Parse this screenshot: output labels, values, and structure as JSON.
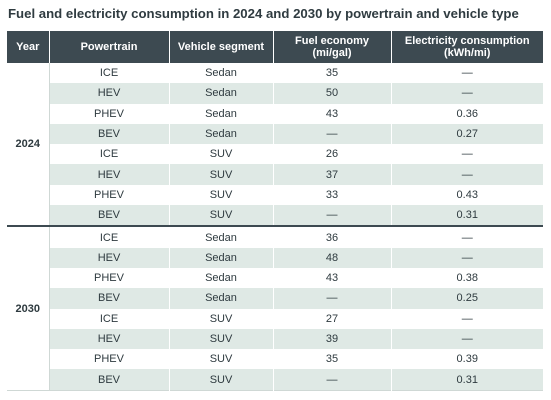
{
  "title": "Fuel and electricity consumption in 2024 and 2030 by powertrain and vehicle type",
  "table": {
    "headers": {
      "year": "Year",
      "powertrain": "Powertrain",
      "segment": "Vehicle segment",
      "fuel_line1": "Fuel economy",
      "fuel_line2": "(mi/gal)",
      "elec_line1": "Electricity consumption",
      "elec_line2": "(kWh/mi)"
    },
    "groups": [
      {
        "year": "2024",
        "rows": [
          {
            "powertrain": "ICE",
            "segment": "Sedan",
            "fuel": "35",
            "elec": "—"
          },
          {
            "powertrain": "HEV",
            "segment": "Sedan",
            "fuel": "50",
            "elec": "—"
          },
          {
            "powertrain": "PHEV",
            "segment": "Sedan",
            "fuel": "43",
            "elec": "0.36"
          },
          {
            "powertrain": "BEV",
            "segment": "Sedan",
            "fuel": "—",
            "elec": "0.27"
          },
          {
            "powertrain": "ICE",
            "segment": "SUV",
            "fuel": "26",
            "elec": "—"
          },
          {
            "powertrain": "HEV",
            "segment": "SUV",
            "fuel": "37",
            "elec": "—"
          },
          {
            "powertrain": "PHEV",
            "segment": "SUV",
            "fuel": "33",
            "elec": "0.43"
          },
          {
            "powertrain": "BEV",
            "segment": "SUV",
            "fuel": "—",
            "elec": "0.31"
          }
        ]
      },
      {
        "year": "2030",
        "rows": [
          {
            "powertrain": "ICE",
            "segment": "Sedan",
            "fuel": "36",
            "elec": "—"
          },
          {
            "powertrain": "HEV",
            "segment": "Sedan",
            "fuel": "48",
            "elec": "—"
          },
          {
            "powertrain": "PHEV",
            "segment": "Sedan",
            "fuel": "43",
            "elec": "0.38"
          },
          {
            "powertrain": "BEV",
            "segment": "Sedan",
            "fuel": "—",
            "elec": "0.25"
          },
          {
            "powertrain": "ICE",
            "segment": "SUV",
            "fuel": "27",
            "elec": "—"
          },
          {
            "powertrain": "HEV",
            "segment": "SUV",
            "fuel": "39",
            "elec": "—"
          },
          {
            "powertrain": "PHEV",
            "segment": "SUV",
            "fuel": "35",
            "elec": "0.39"
          },
          {
            "powertrain": "BEV",
            "segment": "SUV",
            "fuel": "—",
            "elec": "0.31"
          }
        ]
      }
    ]
  },
  "colors": {
    "header_bg": "#3d4a51",
    "stripe_bg": "#dfe9e5",
    "text": "#2e3a3f"
  }
}
